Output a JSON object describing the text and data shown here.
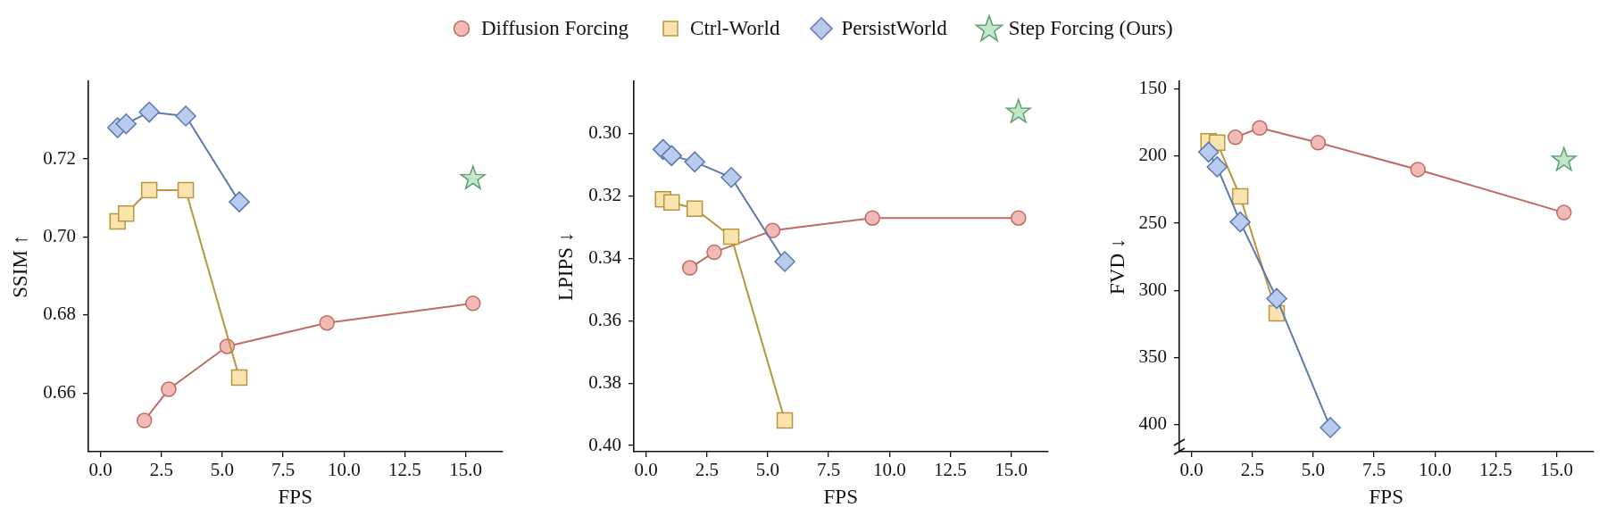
{
  "chart_data": [
    {
      "type": "line",
      "xlabel": "FPS",
      "ylabel": "SSIM ↑",
      "legend": "top",
      "xlim": [
        -0.5,
        16.5
      ],
      "xticks": [
        {
          "value": 0,
          "label": "0.0"
        },
        2.5,
        {
          "value": 5,
          "label": "5.0"
        },
        7.5,
        {
          "value": 10,
          "label": "10.0"
        },
        12.5,
        {
          "value": 15,
          "label": "15.0"
        }
      ],
      "ylim": [
        0.645,
        0.74
      ],
      "yticks": [
        0.66,
        0.68,
        {
          "value": 0.7,
          "label": "0.70"
        },
        0.72
      ],
      "series": [
        {
          "name": "Diffusion Forcing",
          "type": "line",
          "marker": "circle",
          "color": "#bf6b63",
          "x": [
            1.8,
            2.8,
            5.2,
            9.3,
            15.3
          ],
          "values": [
            0.653,
            0.661,
            0.672,
            0.678,
            0.683
          ]
        },
        {
          "name": "Ctrl-World",
          "type": "line",
          "marker": "square",
          "color": "#b8963d",
          "x": [
            0.7,
            1.05,
            2.0,
            3.5,
            5.7
          ],
          "values": [
            0.704,
            0.706,
            0.712,
            0.712,
            0.664
          ]
        },
        {
          "name": "PersistWorld",
          "type": "line",
          "marker": "diamond",
          "color": "#5b79b0",
          "x": [
            0.7,
            1.05,
            2.0,
            3.5,
            5.7
          ],
          "values": [
            0.728,
            0.729,
            0.732,
            0.731,
            0.709
          ]
        },
        {
          "name": "Step Forcing (Ours)",
          "type": "scatter",
          "marker": "star",
          "color": "#5f9e6e",
          "x": [
            15.3
          ],
          "values": [
            0.715
          ]
        }
      ]
    },
    {
      "type": "line",
      "xlabel": "FPS",
      "ylabel": "LPIPS ↓",
      "xlim": [
        -0.5,
        16.5
      ],
      "xticks": [
        {
          "value": 0,
          "label": "0.0"
        },
        2.5,
        {
          "value": 5,
          "label": "5.0"
        },
        7.5,
        {
          "value": 10,
          "label": "10.0"
        },
        12.5,
        {
          "value": 15,
          "label": "15.0"
        }
      ],
      "ylim": [
        0.402,
        0.283
      ],
      "yticks": [
        {
          "value": 0.3,
          "label": "0.30"
        },
        0.32,
        0.34,
        0.36,
        0.38,
        {
          "value": 0.4,
          "label": "0.40"
        }
      ],
      "series": [
        {
          "name": "Diffusion Forcing",
          "type": "line",
          "marker": "circle",
          "color": "#bf6b63",
          "x": [
            1.8,
            2.8,
            5.2,
            9.3,
            15.3
          ],
          "values": [
            0.343,
            0.338,
            0.331,
            0.327,
            0.327
          ]
        },
        {
          "name": "Ctrl-World",
          "type": "line",
          "marker": "square",
          "color": "#b8963d",
          "x": [
            0.7,
            1.05,
            2.0,
            3.5,
            5.7
          ],
          "values": [
            0.321,
            0.322,
            0.324,
            0.333,
            0.392
          ]
        },
        {
          "name": "PersistWorld",
          "type": "line",
          "marker": "diamond",
          "color": "#5b79b0",
          "x": [
            0.7,
            1.05,
            2.0,
            3.5,
            5.7
          ],
          "values": [
            0.305,
            0.307,
            0.309,
            0.314,
            0.341
          ]
        },
        {
          "name": "Step Forcing (Ours)",
          "type": "scatter",
          "marker": "star",
          "color": "#5f9e6e",
          "x": [
            15.3
          ],
          "values": [
            0.293
          ]
        }
      ]
    },
    {
      "type": "line",
      "xlabel": "FPS",
      "ylabel": "FVD ↓",
      "xlim": [
        -0.5,
        16.5
      ],
      "xticks": [
        {
          "value": 0,
          "label": "0.0"
        },
        2.5,
        {
          "value": 5,
          "label": "5.0"
        },
        7.5,
        {
          "value": 10,
          "label": "10.0"
        },
        12.5,
        {
          "value": 15,
          "label": "15.0"
        }
      ],
      "ylim": [
        420,
        144
      ],
      "yticks": [
        150,
        200,
        250,
        300,
        350,
        400
      ],
      "series": [
        {
          "name": "Diffusion Forcing",
          "type": "line",
          "marker": "circle",
          "color": "#bf6b63",
          "x": [
            1.8,
            2.8,
            5.2,
            9.3,
            15.3
          ],
          "values": [
            186,
            179,
            190,
            210,
            242
          ]
        },
        {
          "name": "Ctrl-World",
          "type": "line",
          "marker": "square",
          "color": "#b8963d",
          "x": [
            0.7,
            1.05,
            2.0,
            3.5
          ],
          "values": [
            189,
            190,
            230,
            317
          ]
        },
        {
          "name": "PersistWorld",
          "type": "line",
          "marker": "diamond",
          "color": "#5b79b0",
          "x": [
            0.7,
            1.05,
            2.0,
            3.5,
            5.7
          ],
          "values": [
            197,
            208,
            249,
            306,
            402
          ]
        },
        {
          "name": "Step Forcing (Ours)",
          "type": "scatter",
          "marker": "star",
          "color": "#5f9e6e",
          "x": [
            15.3
          ],
          "values": [
            203
          ]
        }
      ]
    }
  ]
}
